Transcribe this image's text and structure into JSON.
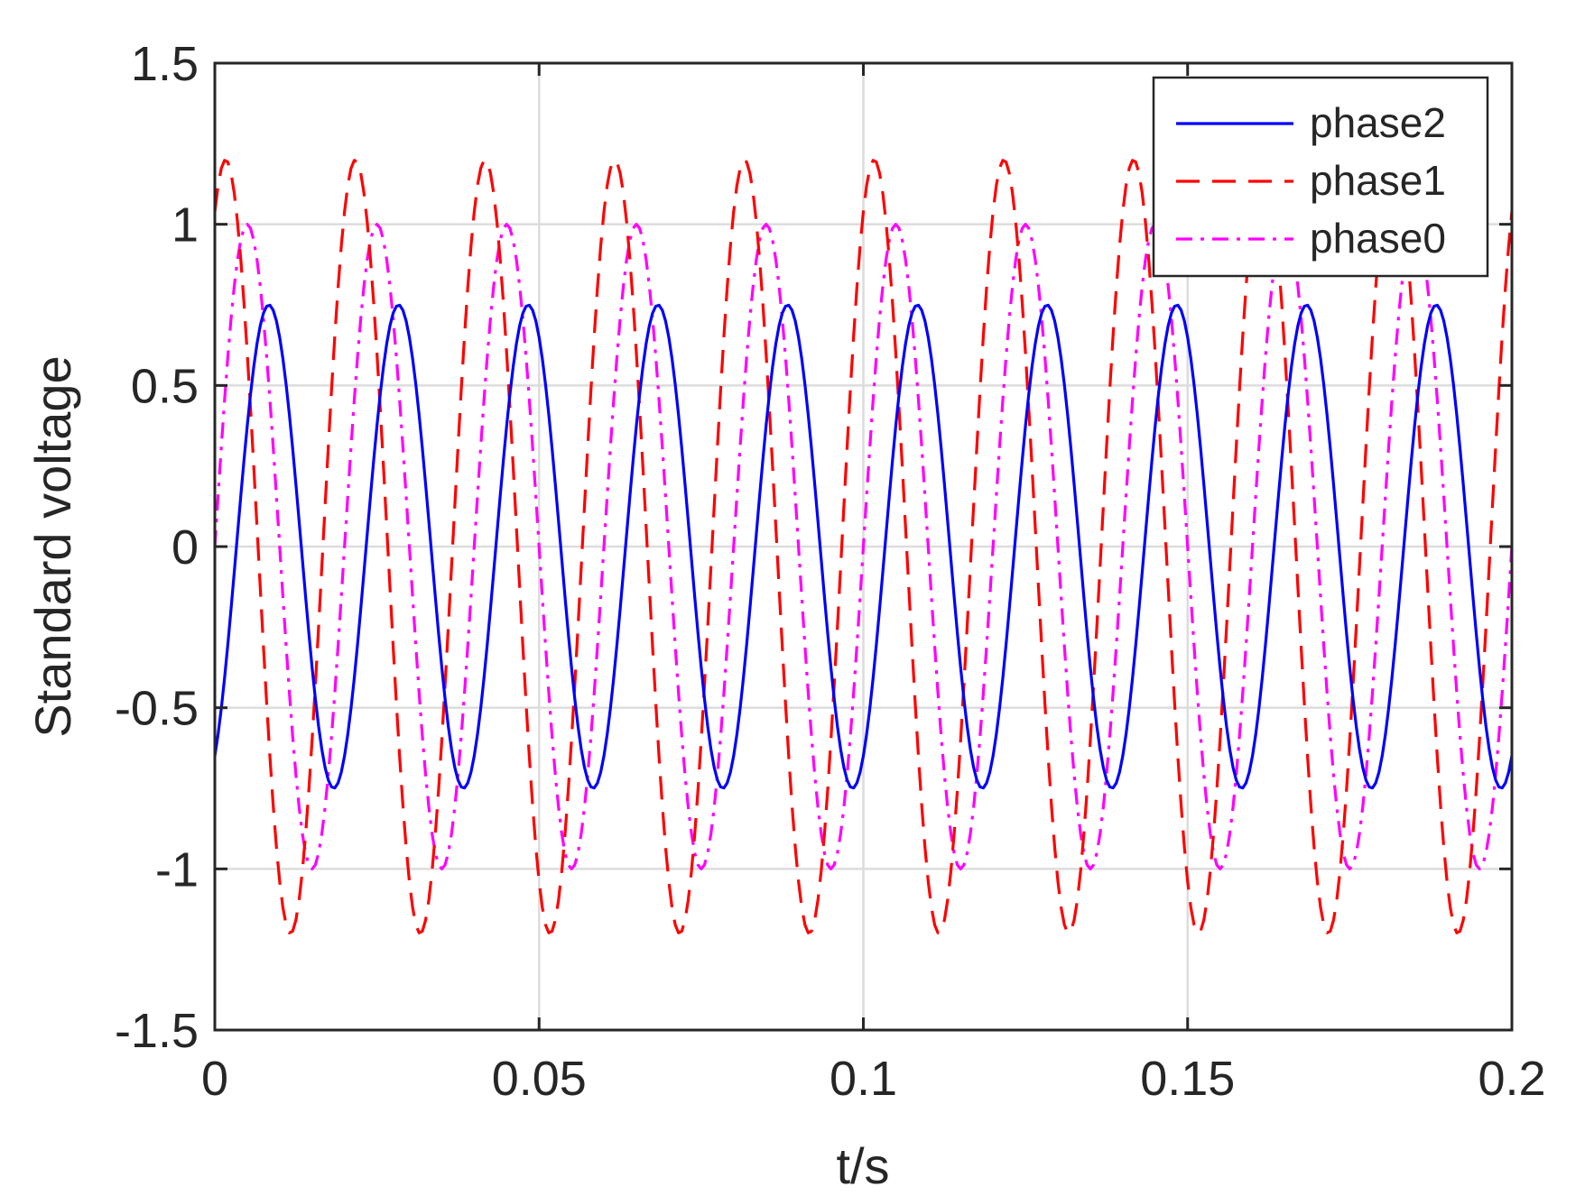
{
  "chart_data": {
    "type": "line",
    "title": "",
    "xlabel": "t/s",
    "ylabel": "Standard voltage",
    "xlim": [
      0,
      0.2
    ],
    "ylim": [
      -1.5,
      1.5
    ],
    "x_ticks": [
      "0",
      "0.05",
      "0.1",
      "0.15",
      "0.2"
    ],
    "y_ticks": [
      "-1.5",
      "-1",
      "-0.5",
      "0",
      "0.5",
      "1",
      "1.5"
    ],
    "grid": true,
    "legend_position": "top-right",
    "x_sampling": {
      "start": 0,
      "end": 0.2,
      "step": 0.0005
    },
    "series": [
      {
        "name": "phase2",
        "color": "#0000ff",
        "line_style": "solid",
        "formula": "0.75*sin(2*pi*50*t - 1.0472)"
      },
      {
        "name": "phase1",
        "color": "#ff0000",
        "line_style": "dashed",
        "formula": "1.2*sin(2*pi*50*t + 1.0472)"
      },
      {
        "name": "phase0",
        "color": "#ff00ff",
        "line_style": "dash-dot",
        "formula": "1.0*sin(2*pi*50*t)"
      }
    ]
  }
}
